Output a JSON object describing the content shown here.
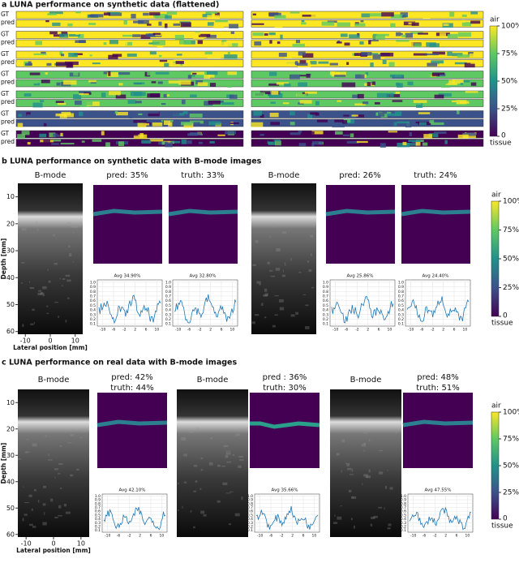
{
  "colorbar": {
    "top_label": "air",
    "bottom_label": "tissue",
    "ticks": [
      {
        "value": 100,
        "label": "100%"
      },
      {
        "value": 75,
        "label": "75%"
      },
      {
        "value": 50,
        "label": "50%"
      },
      {
        "value": 25,
        "label": "25%"
      },
      0
    ],
    "lim": [
      0,
      100
    ]
  },
  "panel_a": {
    "title": "a LUNA performance on synthetic data (flattened)",
    "row_labels": [
      "GT",
      "pred"
    ]
  },
  "bmode_axes": {
    "title": "B-mode",
    "ylabel": "Depth [mm]",
    "xlabel": "Lateral position [mm]",
    "yticks": [
      10,
      20,
      30,
      40,
      50,
      60
    ],
    "ylim": [
      5,
      61
    ],
    "xticks": [
      -10,
      0,
      10
    ],
    "xlim": [
      -13,
      13
    ]
  },
  "profile_axes": {
    "yticks": [
      0.1,
      0.2,
      0.3,
      0.4,
      0.5,
      0.6,
      0.7,
      0.8,
      0.9,
      {
        "value": 1,
        "label": "1.0"
      }
    ],
    "ylim": [
      0.05,
      1.05
    ],
    "xticks": [
      -10,
      -6,
      -2,
      2,
      6,
      10
    ],
    "xlim": [
      -12,
      12
    ]
  },
  "panel_b": {
    "title": "b LUNA performance on synthetic data with B-mode images",
    "examples": [
      {
        "pred": "pred: 35%",
        "truth": "truth: 33%",
        "avg_pred": "Avg 34.90%",
        "avg_truth": "Avg 32.80%"
      },
      {
        "pred": "pred: 26%",
        "truth": "truth: 24%",
        "avg_pred": "Avg 25.86%",
        "avg_truth": "Avg 24.40%"
      }
    ]
  },
  "panel_c": {
    "title": "c LUNA performance on real data with B-mode images",
    "examples": [
      {
        "pred": "pred: 42%",
        "truth": "truth: 44%",
        "avg": "Avg 42.10%"
      },
      {
        "pred": "pred : 36%",
        "truth": "truth: 30%",
        "avg": "Avg 35.66%"
      },
      {
        "pred": "pred: 48%",
        "truth": "truth: 51%",
        "avg": "Avg 47.55%"
      }
    ]
  }
}
